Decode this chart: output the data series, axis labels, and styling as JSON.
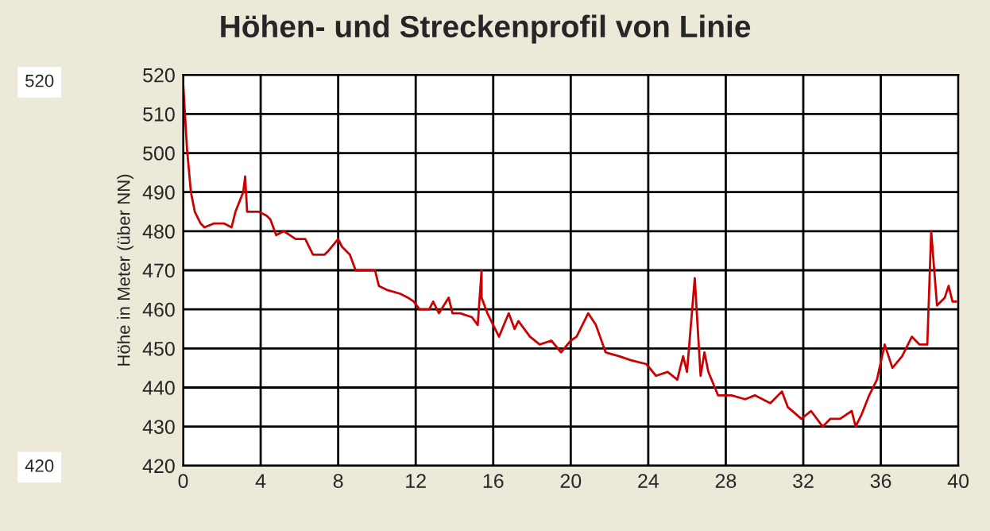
{
  "chart_data": {
    "type": "line",
    "title": "Höhen- und Streckenprofil von Linie",
    "ylabel": "Höhe in Meter (über NN)",
    "annotations": [
      "520",
      "420"
    ],
    "xlim": [
      0,
      40
    ],
    "xticks": [
      0,
      4,
      8,
      12,
      16,
      20,
      24,
      28,
      32,
      36,
      40
    ],
    "ylim": [
      420,
      520
    ],
    "yticks": [
      420,
      430,
      440,
      450,
      460,
      470,
      480,
      490,
      500,
      510,
      520
    ],
    "grid": true,
    "series": [
      {
        "color": "#cc0000",
        "x": [
          0,
          0.2,
          0.4,
          0.6,
          0.9,
          1.1,
          1.6,
          2.1,
          2.5,
          2.7,
          3.1,
          3.2,
          3.3,
          3.9,
          4.3,
          4.5,
          4.8,
          5.2,
          5.8,
          6.3,
          6.7,
          7.3,
          7.5,
          8.0,
          8.2,
          8.6,
          8.9,
          9.4,
          9.9,
          10.1,
          10.5,
          11.2,
          11.6,
          11.9,
          12.2,
          12.7,
          12.9,
          13.2,
          13.7,
          13.9,
          14.3,
          14.9,
          15.2,
          15.4,
          15.4,
          15.7,
          16.0,
          16.3,
          16.8,
          17.1,
          17.3,
          17.9,
          18.4,
          19.0,
          19.5,
          20.0,
          20.3,
          20.6,
          20.9,
          21.3,
          21.8,
          22.5,
          23.1,
          23.9,
          24.4,
          25.0,
          25.5,
          25.8,
          26.0,
          26.4,
          26.7,
          26.9,
          27.1,
          27.6,
          28.3,
          29.0,
          29.5,
          30.3,
          30.9,
          31.2,
          31.9,
          32.4,
          33.0,
          33.4,
          33.9,
          34.5,
          34.7,
          35.0,
          35.4,
          35.8,
          36.2,
          36.6,
          37.1,
          37.6,
          38.0,
          38.4,
          38.6,
          38.9,
          39.3,
          39.5,
          39.7,
          39.9
        ],
        "values": [
          518,
          501,
          490,
          485,
          482,
          481,
          482,
          482,
          481,
          485,
          490,
          494,
          485,
          485,
          484,
          483,
          479,
          480,
          478,
          478,
          474,
          474,
          475,
          478,
          476,
          474,
          470,
          470,
          470,
          466,
          465,
          464,
          463,
          462,
          460,
          460,
          462,
          459,
          463,
          459,
          459,
          458,
          456,
          470,
          463,
          459,
          456,
          453,
          459,
          455,
          457,
          453,
          451,
          452,
          449,
          452,
          453,
          456,
          459,
          456,
          449,
          448,
          447,
          446,
          443,
          444,
          442,
          448,
          444,
          468,
          443,
          449,
          444,
          438,
          438,
          437,
          438,
          436,
          439,
          435,
          432,
          434,
          430,
          432,
          432,
          434,
          430,
          433,
          438,
          442,
          451,
          445,
          448,
          453,
          451,
          451,
          480,
          461,
          463,
          466,
          462,
          462
        ]
      }
    ]
  }
}
